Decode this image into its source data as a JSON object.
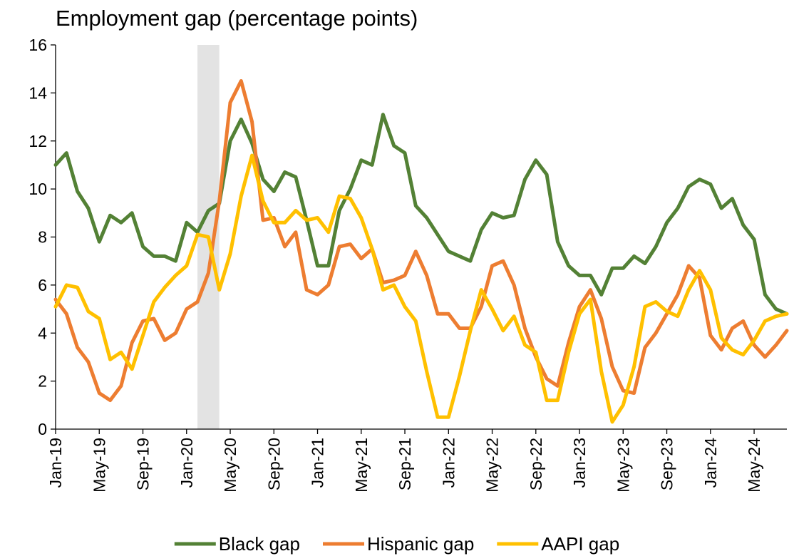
{
  "chart_data": {
    "type": "line",
    "title": "Employment gap (percentage points)",
    "xlabel": "",
    "ylabel": "",
    "ylim": [
      0,
      16
    ],
    "yticks": [
      0,
      2,
      4,
      6,
      8,
      10,
      12,
      14,
      16
    ],
    "x_tick_labels": [
      "Jan-19",
      "May-19",
      "Sep-19",
      "Jan-20",
      "May-20",
      "Sep-20",
      "Jan-21",
      "May-21",
      "Sep-21",
      "Jan-22",
      "May-22",
      "Sep-22",
      "Jan-23",
      "May-23",
      "Sep-23",
      "Jan-24",
      "May-24"
    ],
    "x_start": "Jan-19",
    "x_end": "Sep-24",
    "grid": false,
    "legend_position": "bottom",
    "shaded_period": {
      "start": "Feb-20",
      "end": "Apr-20",
      "color": "#e3e3e3"
    },
    "series": [
      {
        "name": "Black gap",
        "color": "#538135",
        "values": [
          11.0,
          11.5,
          9.9,
          9.2,
          7.8,
          8.9,
          8.6,
          9.0,
          7.6,
          7.2,
          7.2,
          7.0,
          8.6,
          8.2,
          9.1,
          9.4,
          12.0,
          12.9,
          11.9,
          10.4,
          9.9,
          10.7,
          10.5,
          8.7,
          6.8,
          6.8,
          9.1,
          10.0,
          11.2,
          11.0,
          13.1,
          11.8,
          11.5,
          9.3,
          8.8,
          8.1,
          7.4,
          7.2,
          7.0,
          8.3,
          9.0,
          8.8,
          8.9,
          10.4,
          11.2,
          10.6,
          7.8,
          6.8,
          6.4,
          6.4,
          5.6,
          6.7,
          6.7,
          7.2,
          6.9,
          7.6,
          8.6,
          9.2,
          10.1,
          10.4,
          10.2,
          9.2,
          9.6,
          8.5,
          7.9,
          5.6,
          5.0,
          4.8
        ]
      },
      {
        "name": "Hispanic gap",
        "color": "#ed7d31",
        "values": [
          5.4,
          4.8,
          3.4,
          2.8,
          1.5,
          1.2,
          1.8,
          3.6,
          4.5,
          4.6,
          3.7,
          4.0,
          5.0,
          5.3,
          6.5,
          9.5,
          13.6,
          14.5,
          12.8,
          8.7,
          8.8,
          7.6,
          8.2,
          5.8,
          5.6,
          6.0,
          7.6,
          7.7,
          7.1,
          7.5,
          6.1,
          6.2,
          6.4,
          7.4,
          6.4,
          4.8,
          4.8,
          4.2,
          4.2,
          5.1,
          6.8,
          7.0,
          6.0,
          4.2,
          3.0,
          2.1,
          1.8,
          3.6,
          5.1,
          5.8,
          4.6,
          2.6,
          1.6,
          1.5,
          3.4,
          4.0,
          4.8,
          5.6,
          6.8,
          6.3,
          3.9,
          3.3,
          4.2,
          4.5,
          3.5,
          3.0,
          3.5,
          4.1
        ]
      },
      {
        "name": "AAPI gap",
        "color": "#ffc000",
        "values": [
          5.1,
          6.0,
          5.9,
          4.9,
          4.6,
          2.9,
          3.2,
          2.5,
          3.9,
          5.3,
          5.9,
          6.4,
          6.8,
          8.1,
          8.0,
          5.8,
          7.3,
          9.7,
          11.4,
          9.5,
          8.6,
          8.6,
          9.1,
          8.7,
          8.8,
          8.2,
          9.7,
          9.6,
          8.8,
          7.5,
          5.8,
          6.0,
          5.1,
          4.5,
          2.4,
          0.5,
          0.5,
          2.2,
          4.1,
          5.8,
          5.0,
          4.1,
          4.7,
          3.5,
          3.2,
          1.2,
          1.2,
          3.2,
          4.8,
          5.4,
          2.4,
          0.3,
          1.0,
          2.6,
          5.1,
          5.3,
          4.9,
          4.7,
          5.8,
          6.6,
          5.8,
          3.8,
          3.3,
          3.1,
          3.7,
          4.5,
          4.7,
          4.8
        ]
      }
    ]
  }
}
